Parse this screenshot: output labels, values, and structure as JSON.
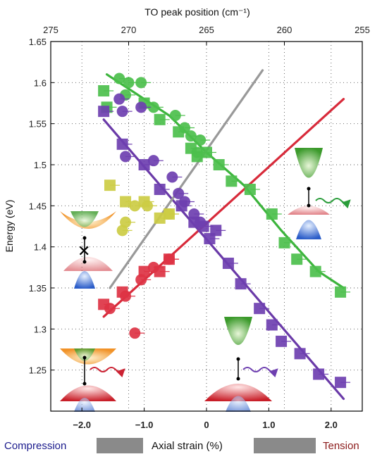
{
  "chart_data": {
    "type": "scatter",
    "title": "",
    "xlabel": "Axial strain (%)",
    "ylabel": "Energy (eV)",
    "xlabel_top": "TO peak position (cm⁻¹)",
    "xlim": [
      -2.5,
      2.5
    ],
    "ylim": [
      1.2,
      1.65
    ],
    "x_ticks": [
      -2.0,
      -1.0,
      0.0,
      1.0,
      2.0
    ],
    "x_tick_labels": [
      "−2.0",
      "−1.0",
      "0",
      "1.0",
      "2.0"
    ],
    "y_ticks": [
      1.25,
      1.3,
      1.35,
      1.4,
      1.45,
      1.5,
      1.55,
      1.6,
      1.65
    ],
    "y_tick_labels": [
      "1.25",
      "1.3",
      "1.35",
      "1.4",
      "1.45",
      "1.5",
      "1.55",
      "1.6",
      "1.65"
    ],
    "top_ticks": [
      275,
      270,
      265,
      260,
      255
    ],
    "grid": true,
    "series": [
      {
        "color": "#4cbf4c",
        "marker": "square",
        "points": [
          [
            -1.65,
            1.59
          ],
          [
            -1.6,
            1.57
          ],
          [
            -1.0,
            1.575
          ],
          [
            -0.75,
            1.555
          ],
          [
            -0.45,
            1.54
          ],
          [
            -0.25,
            1.52
          ],
          [
            -0.15,
            1.51
          ],
          [
            0.0,
            1.515
          ],
          [
            0.2,
            1.5
          ],
          [
            0.4,
            1.48
          ],
          [
            0.7,
            1.47
          ],
          [
            1.05,
            1.44
          ],
          [
            1.25,
            1.405
          ],
          [
            1.45,
            1.385
          ],
          [
            1.75,
            1.37
          ],
          [
            2.15,
            1.345
          ]
        ]
      },
      {
        "color": "#4cbf4c",
        "marker": "circle",
        "points": [
          [
            -1.4,
            1.605
          ],
          [
            -1.25,
            1.6
          ],
          [
            -1.05,
            1.6
          ],
          [
            -1.3,
            1.585
          ],
          [
            -0.85,
            1.57
          ],
          [
            -0.5,
            1.56
          ],
          [
            -0.35,
            1.545
          ],
          [
            -0.25,
            1.535
          ],
          [
            -0.1,
            1.53
          ],
          [
            -0.15,
            1.515
          ]
        ]
      },
      {
        "color": "#6e3fb0",
        "marker": "square",
        "points": [
          [
            -1.65,
            1.565
          ],
          [
            -1.35,
            1.525
          ],
          [
            -1.0,
            1.5
          ],
          [
            -0.75,
            1.47
          ],
          [
            -0.4,
            1.45
          ],
          [
            -0.2,
            1.43
          ],
          [
            -0.05,
            1.425
          ],
          [
            0.05,
            1.41
          ],
          [
            0.15,
            1.42
          ],
          [
            0.35,
            1.38
          ],
          [
            0.55,
            1.355
          ],
          [
            0.85,
            1.325
          ],
          [
            1.05,
            1.305
          ],
          [
            1.2,
            1.285
          ],
          [
            1.5,
            1.27
          ],
          [
            1.8,
            1.245
          ],
          [
            2.15,
            1.235
          ]
        ]
      },
      {
        "color": "#6e3fb0",
        "marker": "circle",
        "points": [
          [
            -1.4,
            1.58
          ],
          [
            -1.35,
            1.565
          ],
          [
            -1.05,
            1.57
          ],
          [
            -1.3,
            1.51
          ],
          [
            -0.85,
            1.505
          ],
          [
            -0.55,
            1.485
          ],
          [
            -0.45,
            1.465
          ],
          [
            -0.35,
            1.455
          ],
          [
            -0.2,
            1.44
          ],
          [
            -0.1,
            1.43
          ]
        ]
      },
      {
        "color": "#cccc44",
        "marker": "square",
        "points": [
          [
            -1.55,
            1.475
          ],
          [
            -1.3,
            1.455
          ],
          [
            -1.0,
            1.455
          ],
          [
            -0.75,
            1.435
          ],
          [
            -0.6,
            1.44
          ]
        ]
      },
      {
        "color": "#cccc44",
        "marker": "circle",
        "points": [
          [
            -1.35,
            1.42
          ],
          [
            -1.3,
            1.43
          ],
          [
            -1.15,
            1.45
          ],
          [
            -0.95,
            1.45
          ],
          [
            -0.6,
            1.44
          ]
        ]
      },
      {
        "color": "#dd3344",
        "marker": "square",
        "points": [
          [
            -1.65,
            1.33
          ],
          [
            -1.35,
            1.345
          ],
          [
            -1.0,
            1.37
          ],
          [
            -0.75,
            1.37
          ],
          [
            -0.6,
            1.385
          ]
        ]
      },
      {
        "color": "#dd3344",
        "marker": "circle",
        "points": [
          [
            -1.55,
            1.325
          ],
          [
            -1.3,
            1.34
          ],
          [
            -1.05,
            1.36
          ],
          [
            -0.85,
            1.375
          ],
          [
            -0.6,
            1.385
          ],
          [
            -1.15,
            1.295
          ]
        ]
      }
    ],
    "fit_lines": [
      {
        "color": "#3cb43c",
        "points": [
          [
            -1.6,
            1.61
          ],
          [
            -0.6,
            1.56
          ],
          [
            0.0,
            1.515
          ],
          [
            0.6,
            1.475
          ],
          [
            1.2,
            1.42
          ],
          [
            1.8,
            1.37
          ],
          [
            2.2,
            1.35
          ]
        ]
      },
      {
        "color": "#6a3aa8",
        "points": [
          [
            -1.65,
            1.555
          ],
          [
            2.2,
            1.215
          ]
        ]
      },
      {
        "color": "#d82a3a",
        "points": [
          [
            -1.65,
            1.315
          ],
          [
            2.2,
            1.58
          ]
        ]
      },
      {
        "color": "#999999",
        "points": [
          [
            -1.55,
            1.35
          ],
          [
            0.9,
            1.615
          ]
        ]
      }
    ]
  },
  "bottom_labels": {
    "compression": "Compression",
    "axial_strain": "Axial strain (%)",
    "tension": "Tension"
  },
  "colors": {
    "compression_text": "#1a1a8c",
    "tension_text": "#8b1a1a",
    "gray_bar": "#8a8a8a"
  }
}
